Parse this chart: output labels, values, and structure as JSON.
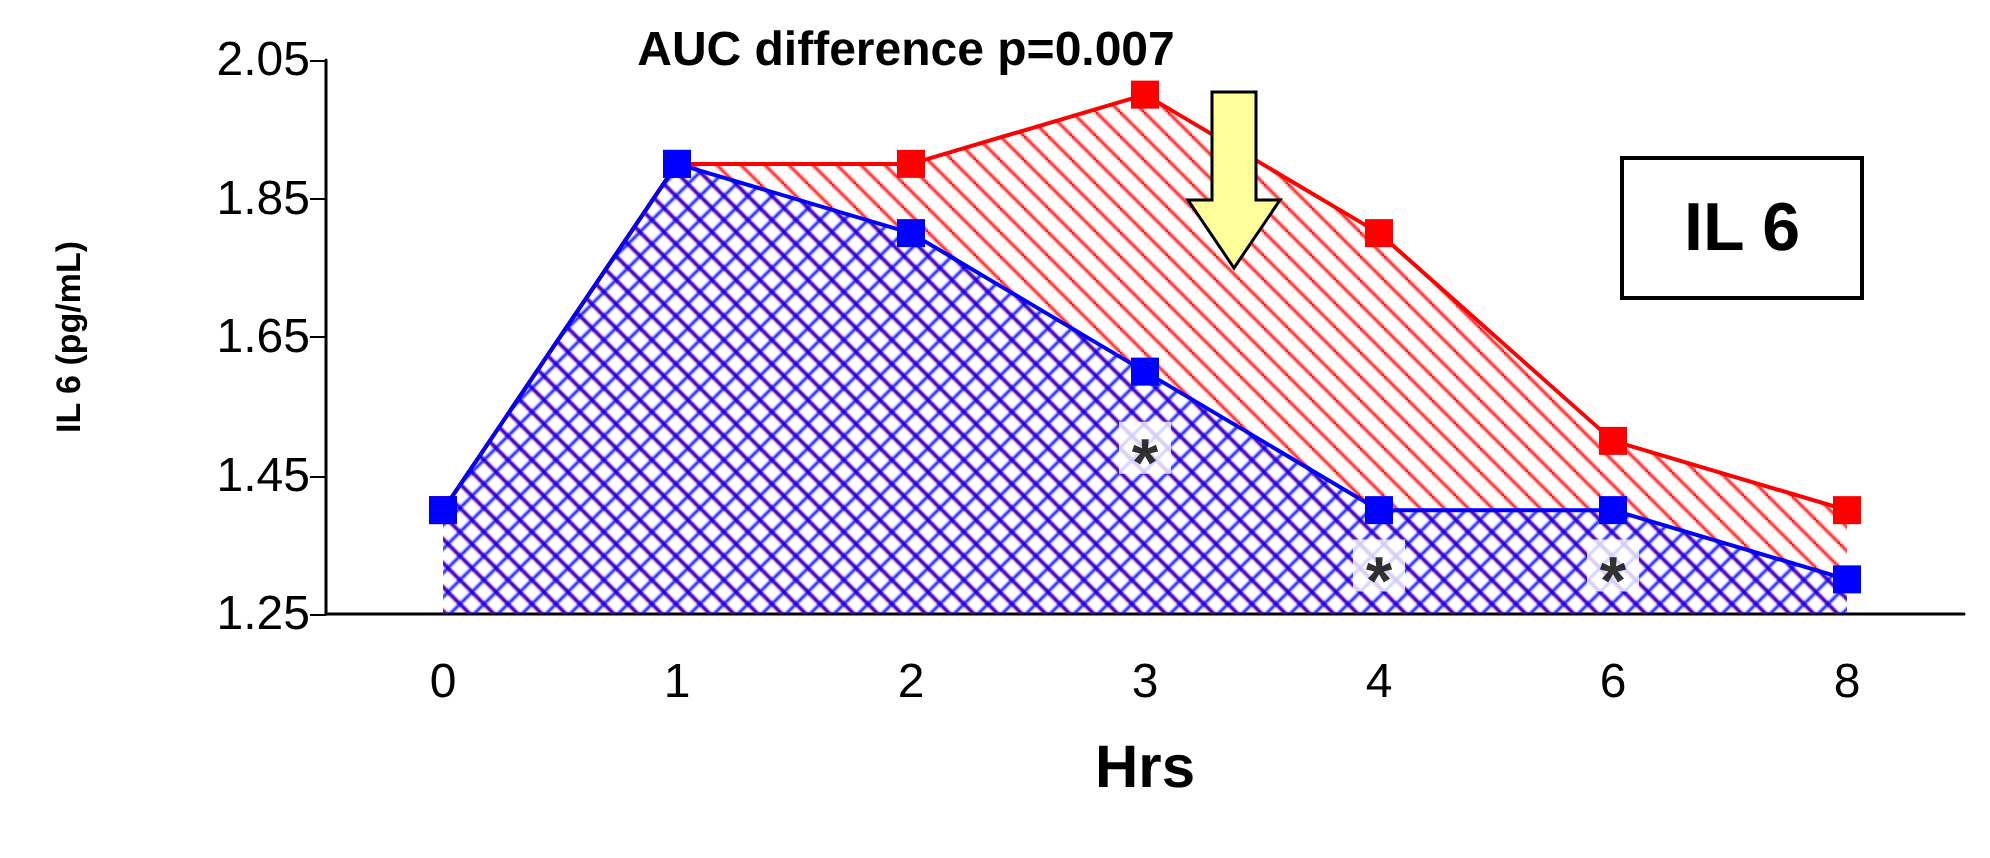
{
  "chart_data": {
    "type": "area",
    "title": "AUC difference p=0.007",
    "xlabel": "Hrs",
    "ylabel": "IL 6 (pg/mL)",
    "categories": [
      "0",
      "1",
      "2",
      "3",
      "4",
      "6",
      "8"
    ],
    "series": [
      {
        "color": "#ff0000",
        "values": [
          1.4,
          1.9,
          1.9,
          2.0,
          1.8,
          1.5,
          1.4
        ]
      },
      {
        "color": "#0000ff",
        "values": [
          1.4,
          1.9,
          1.8,
          1.6,
          1.4,
          1.4,
          1.3
        ]
      }
    ],
    "ylim": [
      1.25,
      2.05
    ],
    "yticks": [
      1.25,
      1.45,
      1.65,
      1.85,
      2.05
    ],
    "grid": false,
    "marker": "square",
    "line_style": "solid",
    "annotations": [
      "IL 6",
      {
        "text": "*",
        "x": "3",
        "y": 1.49
      },
      {
        "text": "*",
        "x": "4",
        "y": 1.32
      },
      {
        "text": "*",
        "x": "6",
        "y": 1.32
      }
    ]
  }
}
